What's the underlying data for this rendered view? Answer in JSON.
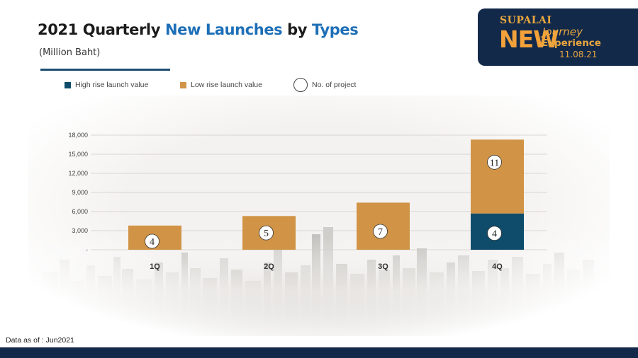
{
  "slide": {
    "title_part1": "2021 Quarterly ",
    "title_part2": "New Launches",
    "title_part3": " by ",
    "title_part4": "Types",
    "subtitle": "(Million Baht)",
    "footnote": "Data as of : Jun2021"
  },
  "logo": {
    "brand": "SUPALAI",
    "new": "NEW",
    "journey": "Journey",
    "experience": "Experience",
    "date": "11.08.21"
  },
  "legend": {
    "high": "High rise launch value",
    "low": "Low rise launch value",
    "count": "No. of project"
  },
  "colors": {
    "high_rise": "#0f4c6b",
    "low_rise": "#d19447",
    "accent_blue": "#1d6fb7",
    "navy": "#13294a"
  },
  "chart_data": {
    "type": "bar",
    "stacked": true,
    "categories": [
      "1Q",
      "2Q",
      "3Q",
      "4Q"
    ],
    "series": [
      {
        "name": "High rise launch value",
        "values": [
          0,
          0,
          0,
          5700
        ]
      },
      {
        "name": "Low rise launch value",
        "values": [
          3800,
          5300,
          7400,
          11600
        ]
      }
    ],
    "project_counts": {
      "high_rise": [
        null,
        null,
        null,
        "4"
      ],
      "low_rise": [
        "4",
        "5",
        "7",
        "11"
      ]
    },
    "y_ticks": [
      "-",
      "3,000",
      "6,000",
      "9,000",
      "12,000",
      "15,000",
      "18,000"
    ],
    "ylim": [
      0,
      18000
    ],
    "grid": true
  }
}
